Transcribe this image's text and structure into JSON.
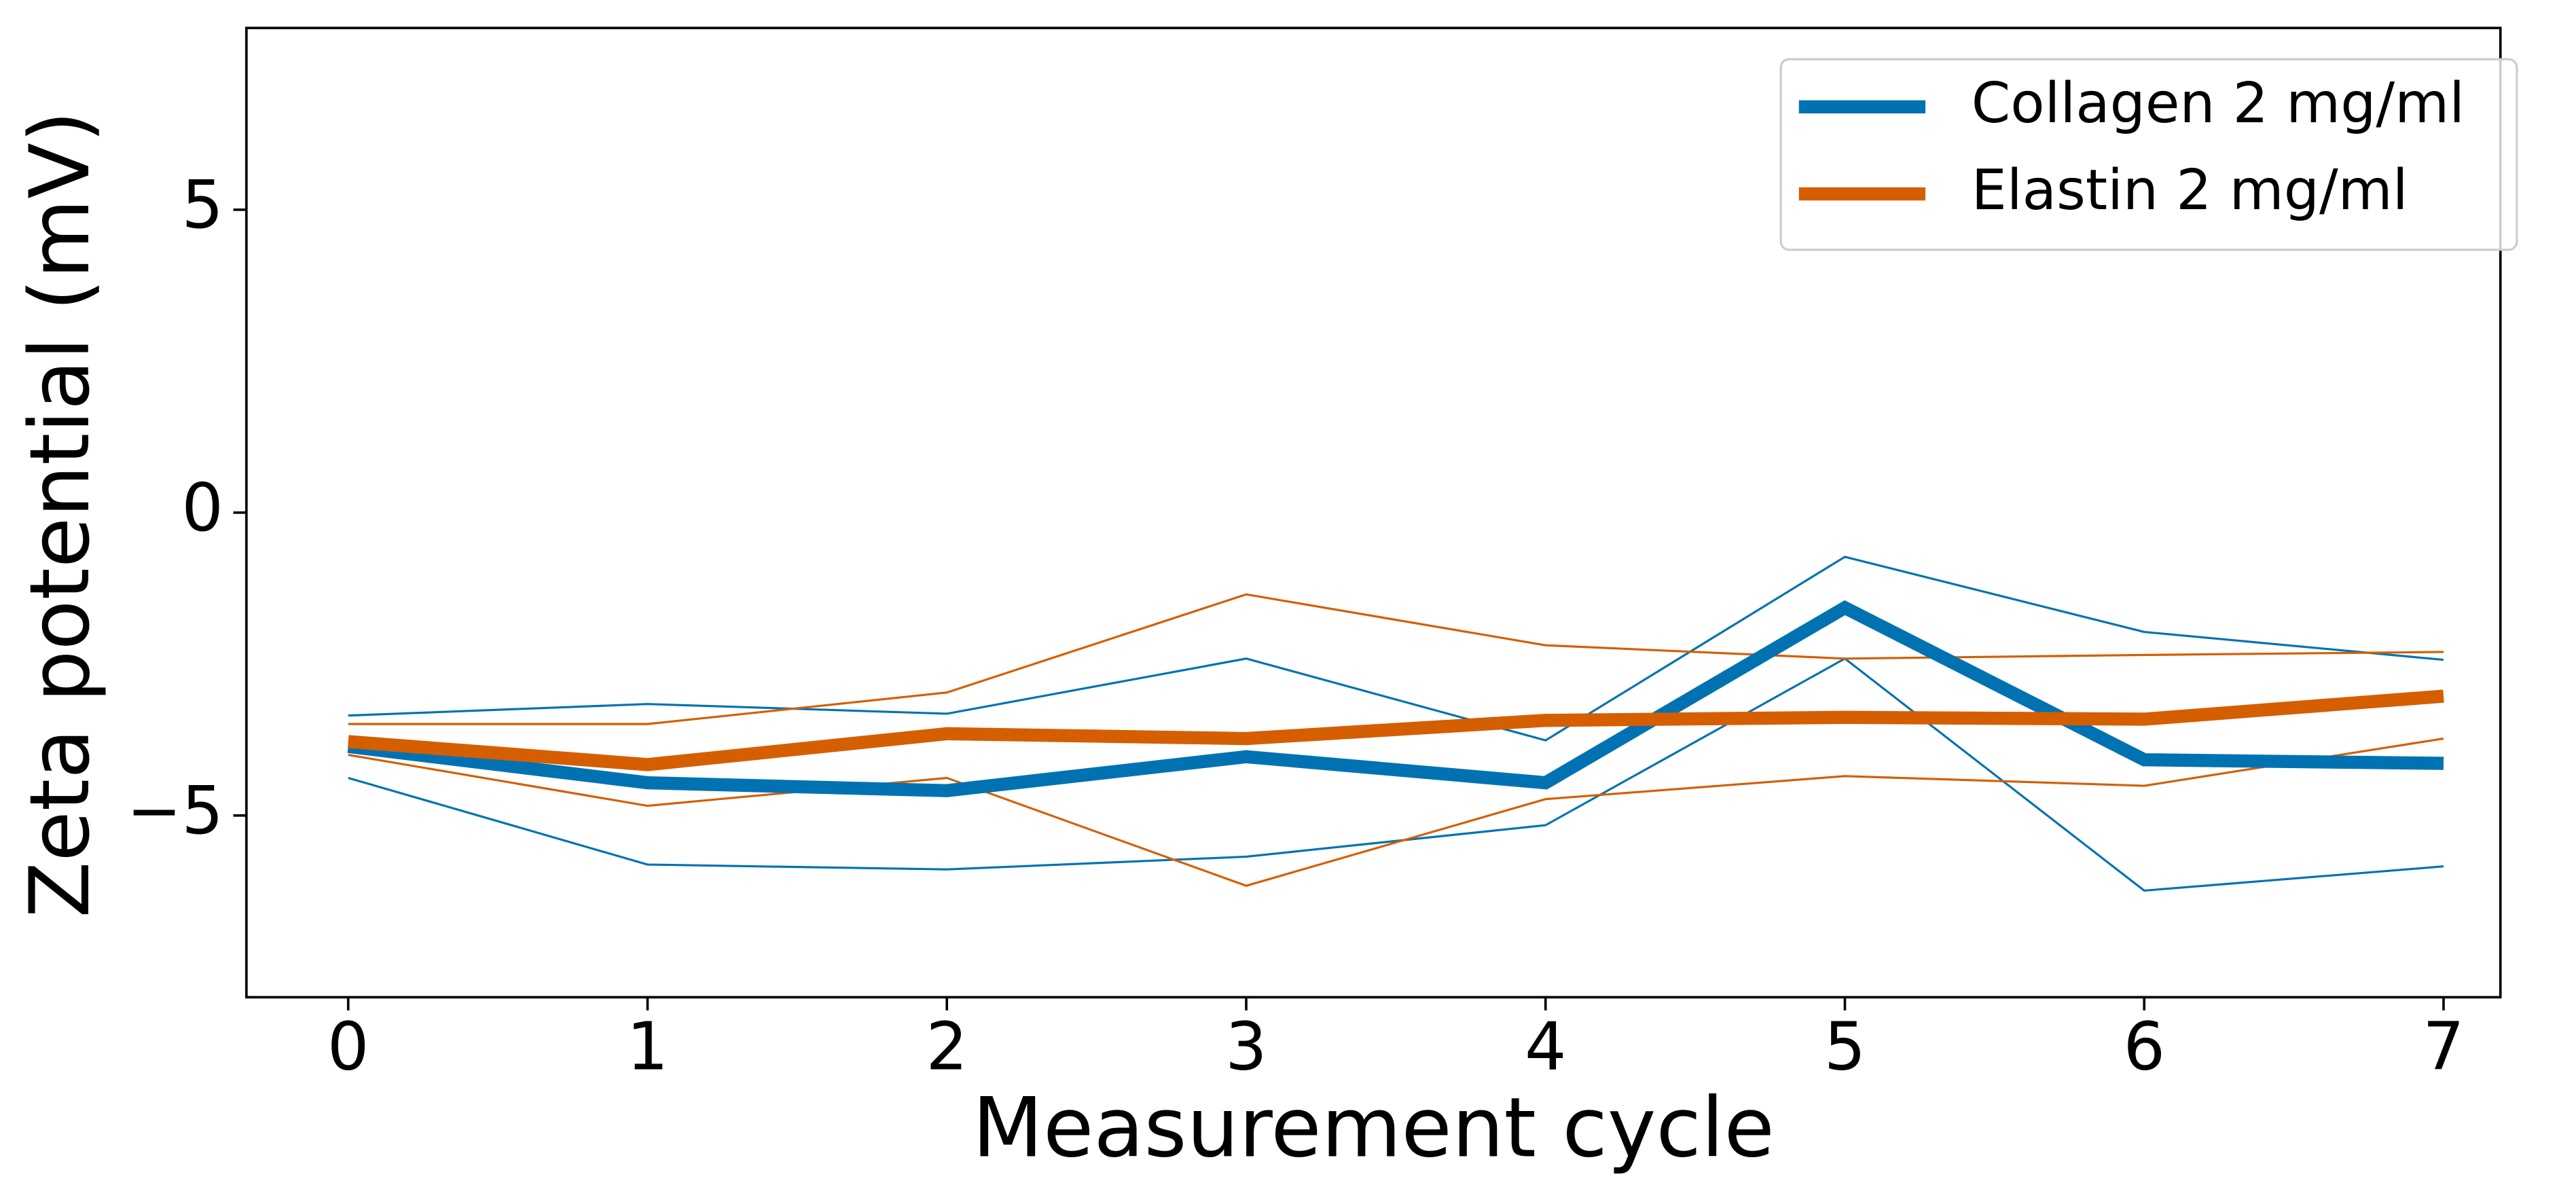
{
  "chart_data": {
    "type": "line",
    "x_label": "Measurement cycle",
    "y_label": "Zeta potential (mV)",
    "x": [
      0,
      1,
      2,
      3,
      4,
      5,
      6,
      7
    ],
    "xlim": [
      -0.34,
      7.19
    ],
    "ylim": [
      -8,
      8
    ],
    "xticks": [
      0,
      1,
      2,
      3,
      4,
      5,
      6,
      7
    ],
    "yticks": [
      {
        "value": -5,
        "label": "−5"
      },
      0,
      5
    ],
    "legend": "upper right",
    "series": [
      {
        "name": "Collagen 2 mg/ml",
        "color": "#0072b2",
        "values": [
          -3.86,
          -4.46,
          -4.59,
          -4.03,
          -4.46,
          -1.57,
          -4.08,
          -4.14
        ],
        "upper": [
          -3.35,
          -3.16,
          -3.32,
          -2.41,
          -3.76,
          -0.73,
          -1.97,
          -2.43
        ],
        "lower": [
          -4.38,
          -5.81,
          -5.89,
          -5.68,
          -5.16,
          -2.41,
          -6.24,
          -5.84
        ]
      },
      {
        "name": "Elastin 2 mg/ml",
        "color": "#d55e00",
        "values": [
          -3.78,
          -4.16,
          -3.65,
          -3.73,
          -3.43,
          -3.38,
          -3.41,
          -3.03
        ],
        "upper": [
          -3.49,
          -3.49,
          -2.97,
          -1.35,
          -2.19,
          -2.41,
          -2.35,
          -2.3
        ],
        "lower": [
          -4.0,
          -4.84,
          -4.38,
          -6.16,
          -4.73,
          -4.35,
          -4.51,
          -3.73
        ]
      }
    ]
  }
}
